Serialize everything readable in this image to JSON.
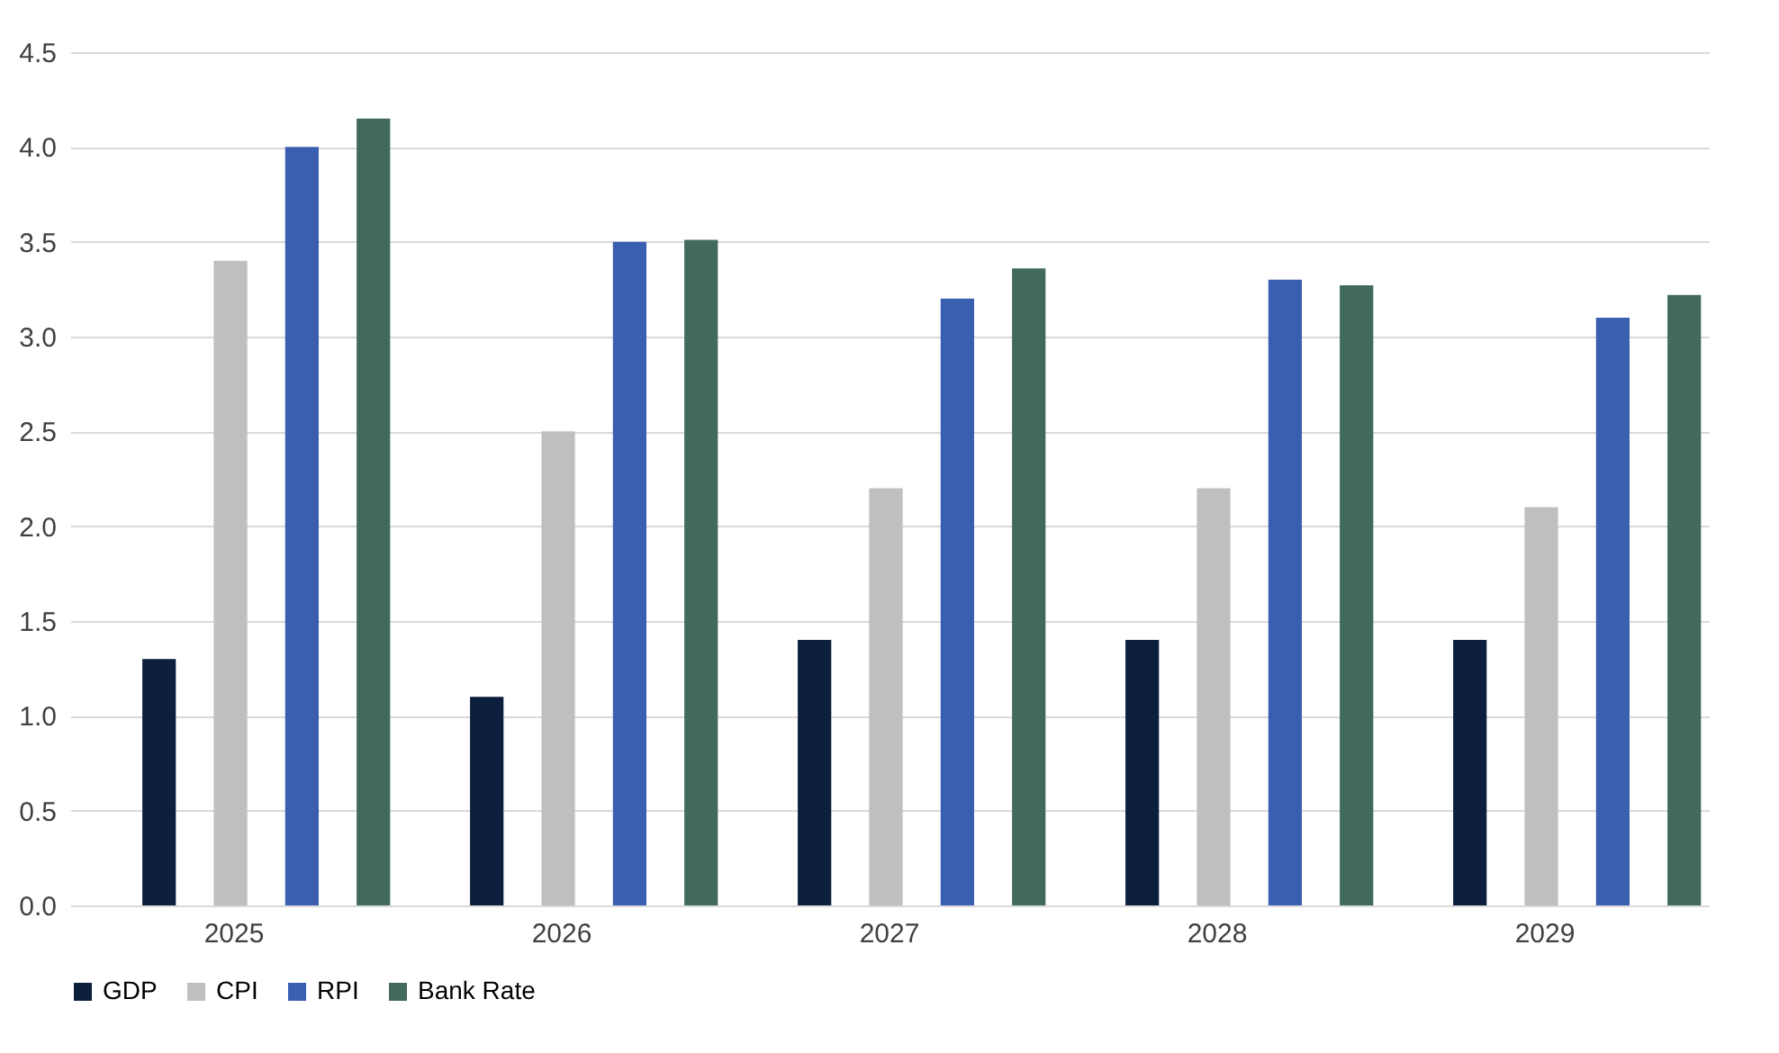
{
  "chart_data": {
    "type": "bar",
    "categories": [
      "2025",
      "2026",
      "2027",
      "2028",
      "2029"
    ],
    "series": [
      {
        "name": "GDP",
        "color": "#0c1f3d",
        "values": [
          1.3,
          1.1,
          1.4,
          1.4,
          1.4
        ]
      },
      {
        "name": "CPI",
        "color": "#bfbfbf",
        "values": [
          3.4,
          2.5,
          2.2,
          2.2,
          2.1
        ]
      },
      {
        "name": "RPI",
        "color": "#3a5eb0",
        "values": [
          4.0,
          3.5,
          3.2,
          3.3,
          3.1
        ]
      },
      {
        "name": "Bank Rate",
        "color": "#416a5a",
        "values": [
          4.15,
          3.51,
          3.36,
          3.27,
          3.22
        ]
      }
    ],
    "ylim": [
      0,
      4.5
    ],
    "yticks": [
      {
        "value": 0,
        "label": "0.0"
      },
      {
        "value": 0.5,
        "label": "0.5"
      },
      {
        "value": 1,
        "label": "1.0"
      },
      {
        "value": 1.5,
        "label": "1.5"
      },
      {
        "value": 2,
        "label": "2.0"
      },
      {
        "value": 2.5,
        "label": "2.5"
      },
      {
        "value": 3,
        "label": "3.0"
      },
      {
        "value": 3.5,
        "label": "3.5"
      },
      {
        "value": 4,
        "label": "4.0"
      },
      {
        "value": 4.5,
        "label": "4.5"
      }
    ],
    "grid": "y",
    "legend": "bottom"
  }
}
